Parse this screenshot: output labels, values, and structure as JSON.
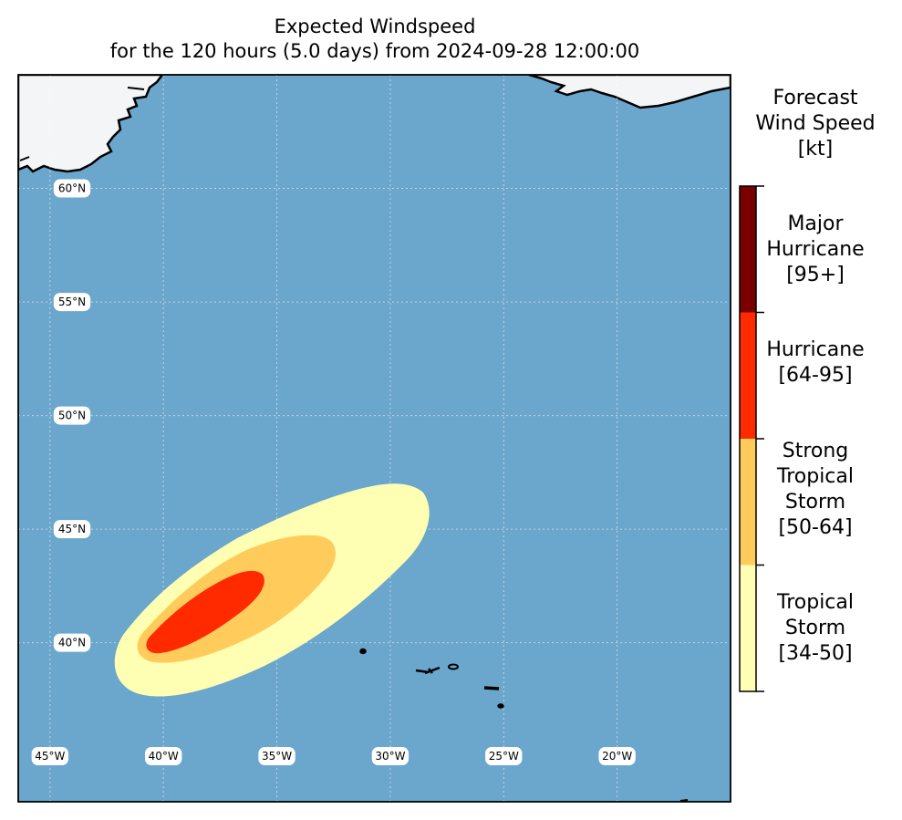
{
  "title": {
    "line1": "Expected Windspeed",
    "line2": "for the 120 hours (5.0 days) from 2024-09-28 12:00:00"
  },
  "map": {
    "extent_lon": [
      -46.4,
      -15.0
    ],
    "extent_lat": [
      33.0,
      65.0
    ],
    "lat_labels": [
      "60°N",
      "55°N",
      "50°N",
      "45°N",
      "40°N"
    ],
    "lat_values": [
      60,
      55,
      50,
      45,
      40
    ],
    "lon_labels": [
      "45°W",
      "40°W",
      "35°W",
      "30°W",
      "25°W",
      "20°W"
    ],
    "lon_values": [
      -45,
      -40,
      -35,
      -30,
      -25,
      -20
    ],
    "ocean_color": "#6ba6cc",
    "land_color": "#f4f5f7"
  },
  "colorbar": {
    "title_line1": "Forecast",
    "title_line2": "Wind Speed",
    "title_line3": "[kt]",
    "categories": [
      {
        "name_line1": "Major",
        "name_line2": "Hurricane",
        "name_line3": "[95+]",
        "range": [
          95,
          null
        ],
        "color": "#7a0000"
      },
      {
        "name_line1": "Hurricane",
        "name_line2": "[64-95]",
        "range": [
          64,
          95
        ],
        "color": "#ff2a00"
      },
      {
        "name_line1": "Strong",
        "name_line2": "Tropical",
        "name_line3": "Storm",
        "name_line4": "[50-64]",
        "range": [
          50,
          64
        ],
        "color": "#ffcc5c"
      },
      {
        "name_line1": "Tropical",
        "name_line2": "Storm",
        "name_line3": "[34-50]",
        "range": [
          34,
          50
        ],
        "color": "#ffffb3"
      }
    ]
  }
}
